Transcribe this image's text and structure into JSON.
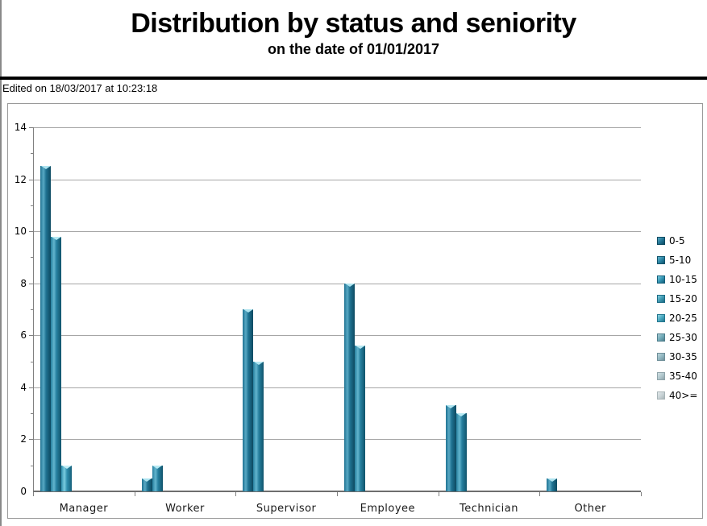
{
  "header": {
    "title": "Distribution by status and seniority",
    "subtitle": "on the date of 01/01/2017",
    "edited_note": "Edited on 18/03/2017 at 10:23:18"
  },
  "chart_data": {
    "type": "bar",
    "title": "Distribution by status and seniority",
    "subtitle": "on the date of 01/01/2017",
    "categories": [
      "Manager",
      "Worker",
      "Supervisor",
      "Employee",
      "Technician",
      "Other"
    ],
    "series": [
      {
        "name": "0-5",
        "values": [
          12.5,
          0.5,
          7,
          8,
          3.3,
          0.5
        ]
      },
      {
        "name": "5-10",
        "values": [
          9.8,
          1,
          5,
          5.6,
          3,
          0
        ]
      },
      {
        "name": "10-15",
        "values": [
          1,
          0,
          0,
          0,
          0,
          0
        ]
      },
      {
        "name": "15-20",
        "values": [
          0,
          0,
          0,
          0,
          0,
          0
        ]
      },
      {
        "name": "20-25",
        "values": [
          0,
          0,
          0,
          0,
          0,
          0
        ]
      },
      {
        "name": "25-30",
        "values": [
          0,
          0,
          0,
          0,
          0,
          0
        ]
      },
      {
        "name": "30-35",
        "values": [
          0,
          0,
          0,
          0,
          0,
          0
        ]
      },
      {
        "name": "35-40",
        "values": [
          0,
          0,
          0,
          0,
          0,
          0
        ]
      },
      {
        "name": "40>=",
        "values": [
          0,
          0,
          0,
          0,
          0,
          0
        ]
      }
    ],
    "series_colors": [
      {
        "dark": "#0d4a61",
        "mid": "#1f7292",
        "light": "#58a9c4",
        "notch": "#aee4f0"
      },
      {
        "dark": "#11546c",
        "mid": "#26809f",
        "light": "#63b5ce",
        "notch": "#b6e9f3"
      },
      {
        "dark": "#155f7a",
        "mid": "#2f8fae",
        "light": "#7accdf",
        "notch": "#c4eef6"
      },
      {
        "dark": "#1c6b85",
        "mid": "#3b95ad",
        "light": "#86d0e0",
        "notch": "#c9f0f7"
      },
      {
        "dark": "#24778f",
        "mid": "#45a4bb",
        "light": "#93d8e6",
        "notch": "#d2f3f9"
      },
      {
        "dark": "#4f7e8c",
        "mid": "#6fa8b6",
        "light": "#a8cdd6",
        "notch": "#ddf0f4"
      },
      {
        "dark": "#6f8f99",
        "mid": "#90b5bf",
        "light": "#bdd6dc",
        "notch": "#e7f3f5"
      },
      {
        "dark": "#8fa4aa",
        "mid": "#afc5cb",
        "light": "#d2e0e4",
        "notch": "#eef5f6"
      },
      {
        "dark": "#a8b4b7",
        "mid": "#c6d1d4",
        "light": "#e2e9eb",
        "notch": "#f4f8f9"
      }
    ],
    "xlabel": "",
    "ylabel": "",
    "ylim": [
      0,
      14
    ],
    "yticks": [
      0,
      2,
      4,
      6,
      8,
      10,
      12,
      14
    ],
    "minor_tick_step": 1,
    "grid": true,
    "grid_color": "#a6a6a6",
    "axis_color": "#808080",
    "legend_position": "right"
  }
}
